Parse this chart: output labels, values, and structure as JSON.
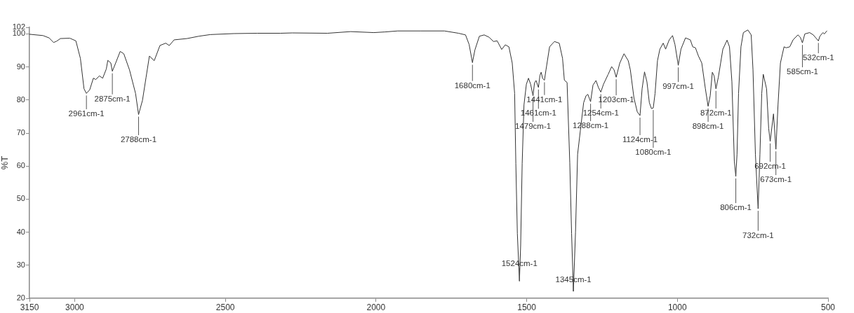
{
  "chart_data": {
    "type": "line",
    "ylabel": "%T",
    "color": "#333333",
    "xlim": [
      3150,
      500
    ],
    "ylim": [
      20,
      102
    ],
    "xticks": [
      3150,
      3000,
      2500,
      2000,
      1500,
      1000,
      500
    ],
    "yticks": [
      20,
      30,
      40,
      50,
      60,
      70,
      80,
      90,
      100,
      102
    ],
    "x": [
      3150,
      3105,
      3085,
      3070,
      3060,
      3047,
      3016,
      2996,
      2981,
      2969,
      2961,
      2950,
      2938,
      2930,
      2918,
      2907,
      2895,
      2890,
      2880,
      2875,
      2864,
      2849,
      2837,
      2818,
      2798,
      2788,
      2775,
      2763,
      2752,
      2736,
      2717,
      2698,
      2686,
      2670,
      2627,
      2588,
      2550,
      2472,
      2394,
      2317,
      2278,
      2161,
      2084,
      2007,
      1970,
      1928,
      1851,
      1773,
      1726,
      1703,
      1691,
      1680,
      1672,
      1657,
      1641,
      1625,
      1610,
      1598,
      1583,
      1571,
      1559,
      1548,
      1540,
      1536,
      1531,
      1524,
      1520,
      1515,
      1509,
      1501,
      1494,
      1487,
      1479,
      1474,
      1469,
      1461,
      1456,
      1452,
      1447,
      1441,
      1436,
      1424,
      1408,
      1392,
      1381,
      1375,
      1366,
      1357,
      1351,
      1345,
      1338,
      1331,
      1322,
      1311,
      1303,
      1297,
      1288,
      1280,
      1270,
      1262,
      1254,
      1245,
      1230,
      1218,
      1210,
      1203,
      1191,
      1177,
      1163,
      1156,
      1144,
      1133,
      1124,
      1117,
      1109,
      1101,
      1093,
      1086,
      1080,
      1074,
      1066,
      1058,
      1047,
      1039,
      1027,
      1016,
      1008,
      997,
      988,
      973,
      957,
      949,
      940,
      930,
      919,
      907,
      898,
      891,
      884,
      878,
      872,
      864,
      849,
      835,
      827,
      819,
      811,
      806,
      802,
      797,
      789,
      781,
      766,
      755,
      749,
      741,
      732,
      726,
      720,
      715,
      704,
      697,
      692,
      681,
      673,
      666,
      658,
      646,
      639,
      627,
      616,
      600,
      592,
      585,
      577,
      561,
      549,
      532,
      527,
      517,
      512,
      504
    ],
    "values": [
      99.9,
      99.5,
      98.8,
      97.4,
      97.8,
      98.6,
      98.7,
      97.9,
      92.6,
      83.4,
      82.0,
      83.1,
      86.6,
      86.2,
      87.3,
      86.6,
      89.4,
      92.0,
      91.2,
      88.7,
      91.2,
      94.7,
      94.0,
      89.1,
      82.0,
      75.6,
      79.9,
      86.9,
      93.3,
      91.9,
      96.5,
      97.2,
      96.5,
      98.2,
      98.6,
      99.3,
      99.8,
      100.1,
      100.2,
      100.2,
      100.3,
      100.2,
      100.7,
      100.4,
      100.6,
      100.9,
      100.9,
      100.9,
      100.2,
      99.7,
      96.8,
      91.3,
      95.1,
      99.3,
      99.7,
      99.0,
      97.7,
      97.9,
      95.3,
      96.7,
      96.1,
      91.2,
      82.0,
      60.8,
      39.6,
      25.2,
      36.1,
      60.8,
      78.5,
      84.8,
      86.6,
      84.8,
      81.3,
      85.2,
      85.9,
      83.8,
      87.5,
      88.4,
      86.5,
      86.0,
      89.1,
      96.1,
      97.7,
      97.2,
      92.6,
      86.0,
      85.3,
      61.0,
      39.6,
      22.1,
      40.0,
      63.6,
      70.7,
      79.2,
      81.3,
      81.7,
      79.5,
      84.5,
      85.9,
      83.8,
      82.4,
      84.8,
      87.7,
      90.1,
      89.1,
      86.9,
      91.2,
      94.0,
      91.9,
      89.1,
      80.6,
      76.4,
      75.3,
      83.4,
      88.5,
      85.5,
      79.2,
      77.4,
      77.6,
      82.0,
      91.9,
      95.4,
      97.2,
      95.4,
      98.2,
      99.5,
      96.8,
      90.5,
      95.4,
      98.8,
      98.2,
      96.1,
      95.8,
      93.3,
      91.2,
      83.4,
      78.1,
      81.3,
      88.4,
      87.3,
      83.4,
      86.9,
      95.4,
      98.1,
      96.1,
      85.5,
      61.5,
      56.9,
      63.6,
      82.0,
      96.1,
      100.4,
      101.2,
      99.7,
      89.1,
      63.6,
      47.1,
      63.6,
      82.0,
      87.8,
      83.4,
      71.4,
      67.5,
      75.8,
      65.1,
      78.5,
      91.2,
      96.1,
      95.8,
      96.1,
      98.2,
      99.7,
      99.0,
      97.3,
      100.0,
      100.4,
      99.7,
      97.9,
      99.3,
      100.4,
      100.0,
      100.9
    ],
    "annotations": [
      {
        "text": "2961cm-1",
        "x": 2961,
        "y": 82.0
      },
      {
        "text": "2875cm-1",
        "x": 2875,
        "y": 88.7
      },
      {
        "text": "2788cm-1",
        "x": 2788,
        "y": 75.6
      },
      {
        "text": "1680cm-1",
        "x": 1680,
        "y": 91.3
      },
      {
        "text": "1524cm-1",
        "x": 1524,
        "y": 25.2
      },
      {
        "text": "1479cm-1",
        "x": 1479,
        "y": 81.3
      },
      {
        "text": "1461cm-1",
        "x": 1461,
        "y": 83.8
      },
      {
        "text": "1441cm-1",
        "x": 1441,
        "y": 86.0
      },
      {
        "text": "1345cm-1",
        "x": 1345,
        "y": 22.1
      },
      {
        "text": "1288cm-1",
        "x": 1288,
        "y": 79.5
      },
      {
        "text": "1254cm-1",
        "x": 1254,
        "y": 82.4
      },
      {
        "text": "1203cm-1",
        "x": 1203,
        "y": 86.9
      },
      {
        "text": "1124cm-1",
        "x": 1124,
        "y": 75.3
      },
      {
        "text": "1080cm-1",
        "x": 1080,
        "y": 77.6
      },
      {
        "text": "997cm-1",
        "x": 997,
        "y": 90.5
      },
      {
        "text": "898cm-1",
        "x": 898,
        "y": 78.1
      },
      {
        "text": "872cm-1",
        "x": 872,
        "y": 83.4
      },
      {
        "text": "806cm-1",
        "x": 806,
        "y": 56.9
      },
      {
        "text": "732cm-1",
        "x": 732,
        "y": 47.1
      },
      {
        "text": "692cm-1",
        "x": 692,
        "y": 67.5
      },
      {
        "text": "673cm-1",
        "x": 673,
        "y": 65.1
      },
      {
        "text": "585cm-1",
        "x": 585,
        "y": 97.3
      },
      {
        "text": "532cm-1",
        "x": 532,
        "y": 97.9
      }
    ]
  }
}
